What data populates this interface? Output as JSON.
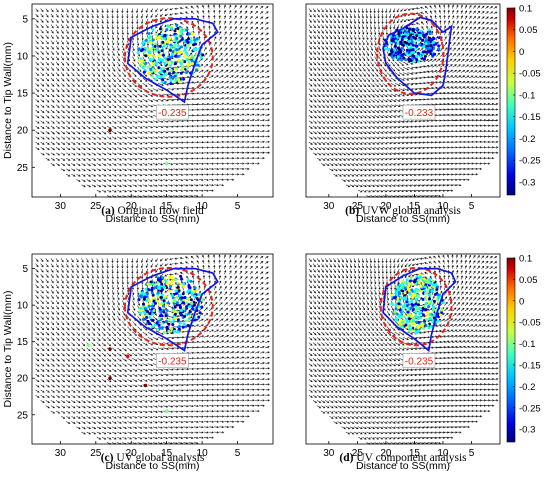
{
  "chart_data": [
    {
      "type": "vector-field",
      "panel_letter": "(a)",
      "caption": "Original flow field",
      "xlabel": "Distance to SS(mm)",
      "ylabel": "Distance to Tip Wall(mm)",
      "xticks": [
        30,
        25,
        20,
        15,
        10,
        5
      ],
      "yticks": [
        5,
        10,
        15,
        20,
        25
      ],
      "xlim": [
        34,
        0
      ],
      "ylim": [
        3,
        29
      ],
      "contour_value_label": "-0.235",
      "vortex_center": [
        14.5,
        9.5
      ],
      "colorbar": false
    },
    {
      "type": "vector-field",
      "panel_letter": "(b)",
      "caption": "UVW global analysis",
      "xlabel": "Distance to SS(mm)",
      "ylabel": "",
      "xticks": [
        30,
        25,
        20,
        15,
        10,
        5
      ],
      "yticks": [],
      "xlim": [
        34,
        0
      ],
      "ylim": [
        3,
        29
      ],
      "contour_value_label": "-0.233",
      "vortex_center": [
        15.5,
        9.0
      ],
      "colorbar": true,
      "colorbar_ticks": [
        "0.1",
        "0.05",
        "0",
        "-0.05",
        "-0.1",
        "-0.15",
        "-0.2",
        "-0.25",
        "-0.3"
      ]
    },
    {
      "type": "vector-field",
      "panel_letter": "(c)",
      "caption": "UV global analysis",
      "xlabel": "Distance to SS(mm)",
      "ylabel": "Distance to Tip Wall(mm)",
      "xticks": [
        30,
        25,
        20,
        15,
        10,
        5
      ],
      "yticks": [
        5,
        10,
        15,
        20,
        25
      ],
      "xlim": [
        34,
        0
      ],
      "ylim": [
        3,
        29
      ],
      "contour_value_label": "-0.235",
      "vortex_center": [
        14.5,
        9.5
      ],
      "colorbar": false
    },
    {
      "type": "vector-field",
      "panel_letter": "(d)",
      "caption": "UV component analysis",
      "xlabel": "Distance to SS(mm)",
      "ylabel": "",
      "xticks": [
        30,
        25,
        20,
        15,
        10,
        5
      ],
      "yticks": [],
      "xlim": [
        34,
        0
      ],
      "ylim": [
        3,
        29
      ],
      "contour_value_label": "-0.235",
      "vortex_center": [
        14.5,
        9.5
      ],
      "colorbar": true,
      "colorbar_ticks": [
        "0.1",
        "0.05",
        "0",
        "-0.05",
        "-0.1",
        "-0.15",
        "-0.2",
        "-0.25",
        "-0.3"
      ]
    }
  ],
  "colors": {
    "contour_dashed": "#e8231a",
    "contour_solid": "#1414e6",
    "arrows": "#111111",
    "colormap": [
      "#7f0000",
      "#ff0000",
      "#ff7f00",
      "#ffff00",
      "#80ff80",
      "#00ffff",
      "#0080ff",
      "#0000ff",
      "#00007f"
    ]
  }
}
